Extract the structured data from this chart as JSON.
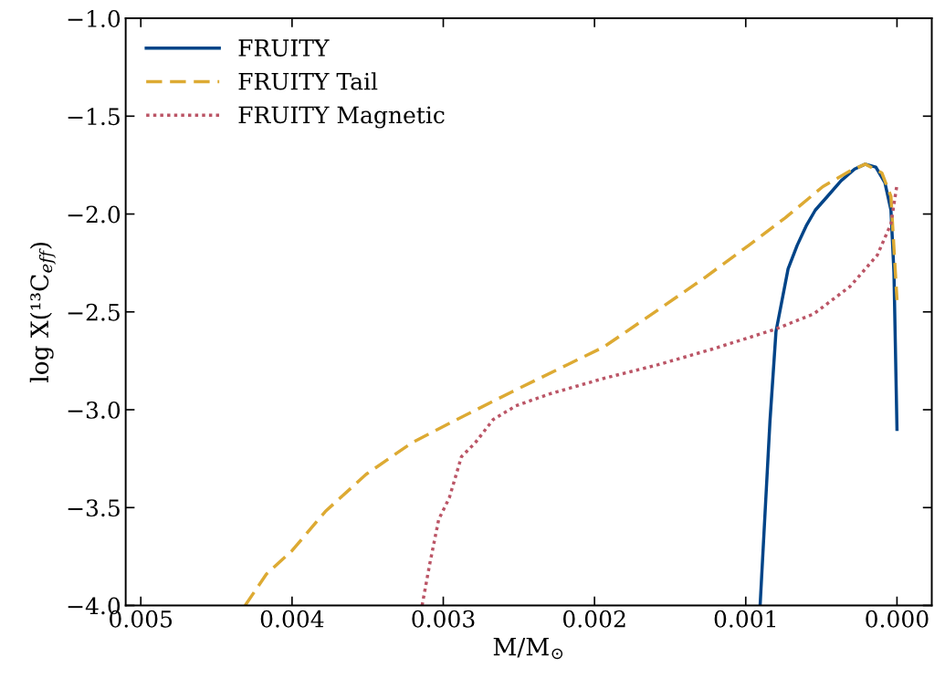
{
  "chart_data": {
    "type": "line",
    "xlabel": "M/M$_{⊙}$",
    "ylabel": "log X(¹³C$_{eff}$)",
    "xlim": [
      0.0051,
      -0.00023
    ],
    "xticks": [
      {
        "value": 0.005,
        "label": "0.005"
      },
      {
        "value": 0.004,
        "label": "0.004"
      },
      {
        "value": 0.003,
        "label": "0.003"
      },
      {
        "value": 0.002,
        "label": "0.002"
      },
      {
        "value": 0.001,
        "label": "0.001"
      },
      {
        "value": 0,
        "label": "0.000"
      }
    ],
    "ylim": [
      -4.0,
      -1.0
    ],
    "yticks": [
      {
        "value": -4.0,
        "label": "−4.0"
      },
      {
        "value": -3.5,
        "label": "−3.5"
      },
      {
        "value": -3.0,
        "label": "−3.0"
      },
      {
        "value": -2.5,
        "label": "−2.5"
      },
      {
        "value": -2.0,
        "label": "−2.0"
      },
      {
        "value": -1.5,
        "label": "−1.5"
      },
      {
        "value": -1.0,
        "label": "−1.0"
      }
    ],
    "grid": false,
    "legend": "top left",
    "marker": "none",
    "series": [
      {
        "name": "FRUITY",
        "color": "#004488",
        "line_style": "solid",
        "x": [
          0.000905,
          0.00084,
          0.0008,
          0.00072,
          0.00066,
          0.0006,
          0.00054,
          0.00046,
          0.00037,
          0.00028,
          0.00021,
          0.00014,
          8e-05,
          4e-05,
          2e-05,
          0.0
        ],
        "values": [
          -4.0,
          -3.06,
          -2.6,
          -2.28,
          -2.16,
          -2.06,
          -1.98,
          -1.91,
          -1.83,
          -1.77,
          -1.745,
          -1.76,
          -1.84,
          -1.98,
          -2.3,
          -3.1
        ]
      },
      {
        "name": "FRUITY Tail",
        "color": "#ddaa33",
        "line_style": "dashed",
        "x": [
          0.00431,
          0.00417,
          0.004,
          0.00378,
          0.00351,
          0.00321,
          0.00291,
          0.00255,
          0.00218,
          0.00194,
          0.00158,
          0.00128,
          0.00098,
          0.00074,
          0.00049,
          0.00031,
          0.00021,
          0.0001,
          4e-05,
          0.0
        ],
        "values": [
          -4.0,
          -3.84,
          -3.72,
          -3.52,
          -3.33,
          -3.17,
          -3.05,
          -2.91,
          -2.77,
          -2.68,
          -2.49,
          -2.33,
          -2.16,
          -2.02,
          -1.86,
          -1.78,
          -1.745,
          -1.79,
          -1.91,
          -2.44
        ]
      },
      {
        "name": "FRUITY Magnetic",
        "color": "#bb5566",
        "line_style": "dotted",
        "x": [
          0.00314,
          0.00309,
          0.00303,
          0.00296,
          0.00288,
          0.00279,
          0.00267,
          0.00252,
          0.0023,
          0.00194,
          0.00158,
          0.00122,
          0.00081,
          0.00055,
          0.00031,
          0.00013,
          4e-05,
          0.0
        ],
        "values": [
          -4.0,
          -3.79,
          -3.56,
          -3.45,
          -3.24,
          -3.17,
          -3.05,
          -2.98,
          -2.92,
          -2.84,
          -2.77,
          -2.69,
          -2.59,
          -2.51,
          -2.37,
          -2.21,
          -2.05,
          -1.85
        ]
      }
    ]
  }
}
